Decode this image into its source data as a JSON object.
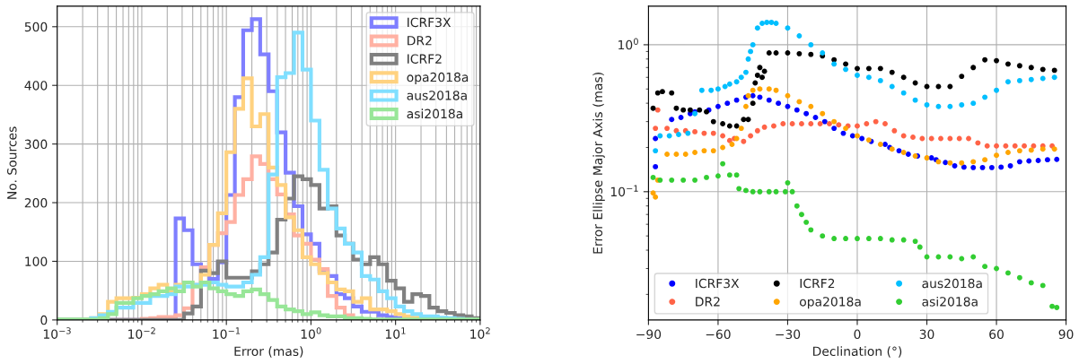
{
  "chart_data": [
    {
      "type": "histogram",
      "xlabel": "Error (mas)",
      "ylabel": "No. Sources",
      "log": "x",
      "grid": true,
      "legend": "top right",
      "xlim": [
        0.001,
        100
      ],
      "xticks": [
        {
          "value": 0.001,
          "label": "10$^{−3}$"
        },
        {
          "value": 0.01,
          "label": "10$^{−2}$"
        },
        {
          "value": 0.1,
          "label": "10$^{−1}$"
        },
        {
          "value": 1,
          "label": "10$^{0}$"
        },
        {
          "value": 10,
          "label": "10$^{1}$"
        },
        {
          "value": 100,
          "label": "10$^{2}$"
        }
      ],
      "ylim": [
        0,
        535
      ],
      "yticks": [
        0,
        100,
        200,
        300,
        400,
        500
      ],
      "bins": [
        0.001,
        0.00126,
        0.00158,
        0.002,
        0.00251,
        0.00316,
        0.00398,
        0.00501,
        0.00631,
        0.00794,
        0.01,
        0.0126,
        0.0158,
        0.02,
        0.0251,
        0.0316,
        0.0398,
        0.0501,
        0.0631,
        0.0794,
        0.1,
        0.126,
        0.158,
        0.2,
        0.251,
        0.316,
        0.398,
        0.501,
        0.631,
        0.794,
        1,
        1.26,
        1.58,
        2,
        2.51,
        3.16,
        3.98,
        5.01,
        6.31,
        7.94,
        10,
        12.6,
        15.8,
        20,
        25.1,
        31.6,
        39.8,
        50.1,
        63.1,
        79.4,
        100
      ],
      "series": [
        {
          "name": "ICRF3X",
          "color": "#7f7fff",
          "values": [
            0,
            0,
            0,
            0,
            0,
            0,
            0,
            0,
            0,
            0,
            0,
            0,
            0,
            0,
            173,
            153,
            95,
            84,
            70,
            98,
            213,
            380,
            494,
            513,
            453,
            390,
            320,
            251,
            194,
            146,
            130,
            83,
            75,
            44,
            37,
            23,
            14,
            14,
            8,
            5,
            3,
            2,
            2,
            1,
            0,
            0,
            0,
            0,
            0,
            0
          ]
        },
        {
          "name": "DR2",
          "color": "#ffb1a3",
          "values": [
            0,
            0,
            0,
            0,
            0,
            0,
            0,
            0,
            0,
            0,
            2,
            3,
            5,
            5,
            8,
            20,
            60,
            90,
            128,
            148,
            167,
            213,
            240,
            279,
            266,
            240,
            214,
            180,
            144,
            130,
            103,
            87,
            41,
            21,
            8,
            2,
            0,
            0,
            0,
            0,
            0,
            0,
            0,
            0,
            0,
            0,
            0,
            0,
            0,
            0
          ]
        },
        {
          "name": "ICRF2",
          "color": "#808080",
          "values": [
            0,
            0,
            0,
            0,
            0,
            0,
            0,
            0,
            0,
            0,
            0,
            0,
            0,
            0,
            0,
            11,
            23,
            84,
            80,
            100,
            72,
            72,
            72,
            83,
            95,
            115,
            171,
            207,
            245,
            240,
            230,
            190,
            194,
            144,
            130,
            103,
            95,
            107,
            95,
            67,
            54,
            31,
            44,
            41,
            21,
            15,
            12,
            8,
            6,
            3
          ]
        },
        {
          "name": "opa2018a",
          "color": "#ffd280",
          "values": [
            0,
            0,
            0,
            0,
            3,
            10,
            31,
            37,
            37,
            38,
            44,
            54,
            60,
            49,
            60,
            64,
            58,
            77,
            128,
            182,
            286,
            360,
            412,
            330,
            351,
            260,
            230,
            175,
            153,
            107,
            95,
            80,
            64,
            52,
            49,
            31,
            37,
            18,
            18,
            15,
            10,
            6,
            4,
            3,
            2,
            0,
            0,
            0,
            0,
            0
          ]
        },
        {
          "name": "aus2018a",
          "color": "#80dfff",
          "values": [
            0,
            0,
            0,
            0,
            3,
            8,
            14,
            21,
            21,
            29,
            29,
            41,
            41,
            44,
            57,
            57,
            60,
            60,
            64,
            60,
            57,
            57,
            64,
            77,
            107,
            248,
            414,
            421,
            490,
            427,
            340,
            256,
            190,
            156,
            130,
            115,
            75,
            69,
            49,
            37,
            23,
            15,
            10,
            6,
            6,
            4,
            3,
            2,
            1,
            0
          ]
        },
        {
          "name": "asi2018a",
          "color": "#98e698",
          "values": [
            1,
            1,
            1,
            1,
            1,
            3,
            10,
            29,
            29,
            37,
            41,
            44,
            49,
            54,
            49,
            64,
            57,
            64,
            54,
            49,
            44,
            41,
            49,
            52,
            44,
            34,
            23,
            18,
            15,
            10,
            13,
            8,
            6,
            6,
            3,
            3,
            2,
            1,
            1,
            1,
            1,
            1,
            1,
            1,
            1,
            1,
            1,
            1,
            1,
            1
          ]
        }
      ]
    },
    {
      "type": "scatter",
      "xlabel": "Declination (°)",
      "ylabel": "Error Ellipse Major Axis (mas)",
      "log": "y",
      "grid": true,
      "legend": "bottom left",
      "marker": "circle",
      "xlim": [
        -90,
        90
      ],
      "xticks": [
        {
          "value": -90,
          "label": "−90"
        },
        {
          "value": -60,
          "label": "−60"
        },
        {
          "value": -30,
          "label": "−30"
        },
        0,
        30,
        60,
        90
      ],
      "ylim": [
        0.0134,
        1.83
      ],
      "yticks": [
        {
          "value": 0.1,
          "label": "10$^{−1}$"
        },
        {
          "value": 1,
          "label": "10$^{0}$"
        }
      ],
      "series": [
        {
          "name": "ICRF3X",
          "color": "#0000ff",
          "x": [
            -87,
            -87,
            -80,
            -76,
            -72,
            -70,
            -64,
            -60,
            -56,
            -52,
            -48,
            -45,
            -42,
            -38,
            -34,
            -30,
            -26,
            -22,
            -18,
            -14,
            -10,
            -6,
            -2,
            2,
            6,
            12,
            14,
            18,
            22,
            26,
            32,
            34,
            38,
            42,
            46,
            50,
            54,
            58,
            62,
            66,
            70,
            74,
            78,
            82,
            86
          ],
          "values": [
            0.23,
            0.148,
            0.31,
            0.32,
            0.34,
            0.35,
            0.36,
            0.38,
            0.4,
            0.42,
            0.44,
            0.45,
            0.44,
            0.42,
            0.4,
            0.38,
            0.36,
            0.34,
            0.32,
            0.3,
            0.27,
            0.25,
            0.24,
            0.23,
            0.22,
            0.21,
            0.2,
            0.19,
            0.18,
            0.175,
            0.17,
            0.165,
            0.158,
            0.15,
            0.147,
            0.146,
            0.146,
            0.146,
            0.147,
            0.15,
            0.16,
            0.162,
            0.163,
            0.165,
            0.166
          ]
        },
        {
          "name": "DR2",
          "color": "#ff6347",
          "x": [
            -87,
            -86,
            -82,
            -78,
            -74,
            -70,
            -66,
            -62,
            -58,
            -55,
            -53,
            -49,
            -46,
            -43,
            -40,
            -36,
            -32,
            -28,
            -24,
            -20,
            -16,
            -12,
            -8,
            -4,
            0,
            4,
            8,
            12,
            16,
            20,
            24,
            28,
            32,
            36,
            40,
            44,
            48,
            52,
            56,
            60,
            64,
            68,
            72,
            76,
            80,
            84
          ],
          "values": [
            0.27,
            0.36,
            0.27,
            0.26,
            0.26,
            0.256,
            0.25,
            0.25,
            0.24,
            0.223,
            0.23,
            0.22,
            0.24,
            0.26,
            0.275,
            0.28,
            0.29,
            0.29,
            0.29,
            0.29,
            0.29,
            0.29,
            0.285,
            0.28,
            0.28,
            0.29,
            0.3,
            0.29,
            0.26,
            0.24,
            0.235,
            0.23,
            0.23,
            0.23,
            0.23,
            0.23,
            0.23,
            0.215,
            0.205,
            0.205,
            0.205,
            0.205,
            0.205,
            0.205,
            0.205,
            0.205
          ]
        },
        {
          "name": "ICRF2",
          "color": "#000000",
          "x": [
            -88,
            -86,
            -84,
            -80,
            -78,
            -75,
            -72,
            -68,
            -65,
            -62,
            -58,
            -55,
            -52,
            -49,
            -47,
            -45,
            -44,
            -43,
            -42,
            -41,
            -40,
            -38,
            -35,
            -30,
            -25,
            -20,
            -15,
            -10,
            -5,
            0,
            5,
            10,
            15,
            20,
            25,
            30,
            35,
            40,
            45,
            50,
            55,
            60,
            65,
            70,
            75,
            80,
            85
          ],
          "values": [
            0.37,
            0.47,
            0.48,
            0.47,
            0.37,
            0.36,
            0.36,
            0.36,
            0.35,
            0.3,
            0.29,
            0.28,
            0.28,
            0.31,
            0.31,
            0.4,
            0.55,
            0.62,
            0.7,
            0.6,
            0.66,
            0.88,
            0.88,
            0.88,
            0.87,
            0.86,
            0.84,
            0.79,
            0.74,
            0.69,
            0.69,
            0.69,
            0.65,
            0.6,
            0.55,
            0.52,
            0.52,
            0.52,
            0.61,
            0.7,
            0.79,
            0.78,
            0.74,
            0.72,
            0.7,
            0.68,
            0.67
          ]
        },
        {
          "name": "opa2018a",
          "color": "#ffa500",
          "x": [
            -88,
            -87,
            -86,
            -82,
            -78,
            -74,
            -70,
            -66,
            -62,
            -58,
            -54,
            -52,
            -50,
            -48,
            -47,
            -45,
            -42,
            -38,
            -35,
            -30,
            -25,
            -20,
            -15,
            -10,
            -5,
            0,
            5,
            10,
            15,
            20,
            25,
            30,
            35,
            40,
            45,
            50,
            55,
            60,
            65,
            70,
            75,
            80,
            85
          ],
          "values": [
            0.098,
            0.092,
            0.12,
            0.18,
            0.18,
            0.18,
            0.185,
            0.19,
            0.19,
            0.2,
            0.21,
            0.23,
            0.27,
            0.38,
            0.45,
            0.49,
            0.5,
            0.5,
            0.49,
            0.45,
            0.41,
            0.38,
            0.34,
            0.3,
            0.27,
            0.24,
            0.225,
            0.21,
            0.195,
            0.185,
            0.175,
            0.17,
            0.16,
            0.157,
            0.157,
            0.16,
            0.165,
            0.177,
            0.185,
            0.19,
            0.192,
            0.195,
            0.195
          ]
        },
        {
          "name": "aus2018a",
          "color": "#00bfff",
          "x": [
            -87,
            -85,
            -81,
            -77,
            -73,
            -70,
            -67,
            -63,
            -60,
            -57,
            -55,
            -52,
            -50,
            -48,
            -47,
            -46,
            -45,
            -43,
            -41,
            -39,
            -37,
            -35,
            -30,
            -25,
            -20,
            -15,
            -10,
            -5,
            0,
            5,
            10,
            15,
            20,
            25,
            30,
            35,
            40,
            45,
            50,
            55,
            60,
            65,
            70,
            75,
            80,
            85
          ],
          "values": [
            0.19,
            0.24,
            0.24,
            0.245,
            0.25,
            0.34,
            0.49,
            0.49,
            0.5,
            0.52,
            0.54,
            0.56,
            0.6,
            0.65,
            0.8,
            0.9,
            1.0,
            1.3,
            1.4,
            1.42,
            1.42,
            1.4,
            1.3,
            1.15,
            1.0,
            0.88,
            0.74,
            0.68,
            0.62,
            0.6,
            0.57,
            0.52,
            0.47,
            0.42,
            0.39,
            0.38,
            0.38,
            0.39,
            0.4,
            0.44,
            0.49,
            0.56,
            0.57,
            0.58,
            0.59,
            0.6
          ]
        },
        {
          "name": "asi2018a",
          "color": "#32cd32",
          "x": [
            -88,
            -85,
            -80,
            -75,
            -70,
            -65,
            -60,
            -58,
            -55,
            -52,
            -51,
            -48,
            -45,
            -42,
            -38,
            -35,
            -31,
            -30,
            -28,
            -26,
            -24,
            -22,
            -20,
            -15,
            -10,
            -5,
            0,
            5,
            10,
            15,
            20,
            25,
            27,
            30,
            35,
            40,
            45,
            50,
            55,
            60,
            65,
            70,
            75,
            80,
            84,
            86
          ],
          "values": [
            0.125,
            0.12,
            0.12,
            0.12,
            0.12,
            0.125,
            0.128,
            0.155,
            0.13,
            0.13,
            0.105,
            0.102,
            0.1,
            0.1,
            0.1,
            0.1,
            0.1,
            0.115,
            0.1,
            0.08,
            0.07,
            0.062,
            0.055,
            0.05,
            0.048,
            0.048,
            0.048,
            0.048,
            0.048,
            0.047,
            0.047,
            0.046,
            0.042,
            0.036,
            0.036,
            0.036,
            0.035,
            0.036,
            0.031,
            0.03,
            0.028,
            0.026,
            0.024,
            0.023,
            0.0166,
            0.0163
          ]
        }
      ]
    }
  ]
}
